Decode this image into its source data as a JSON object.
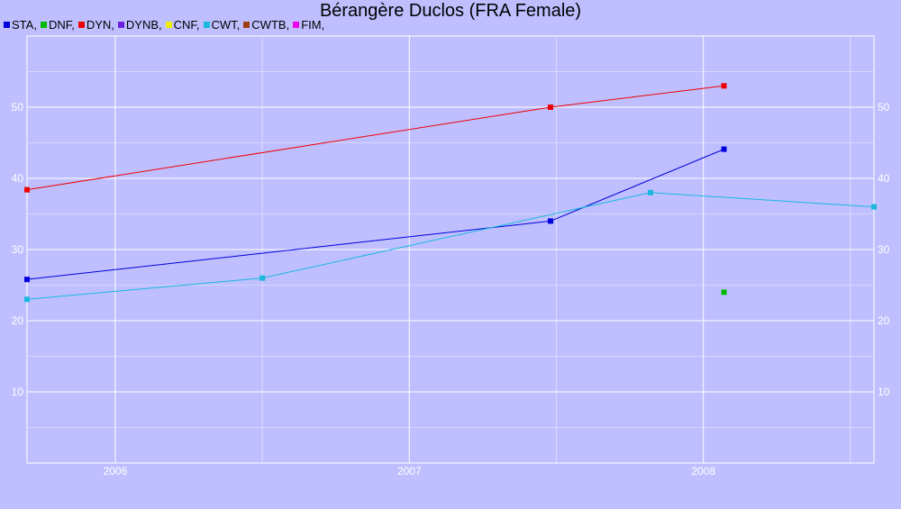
{
  "colors": {
    "background": "#bfbfff",
    "grid": "#ffffff",
    "tick_text": "#ffffff"
  },
  "chart_data": {
    "type": "line",
    "title": "Bérangère Duclos (FRA Female)",
    "xlabel": "",
    "ylabel": "",
    "xlim": [
      2005.7,
      2008.58
    ],
    "ylim": [
      0,
      60
    ],
    "x_ticks": [
      2006,
      2007,
      2008
    ],
    "x_tick_labels": [
      "2006",
      "2007",
      "2008"
    ],
    "y_ticks": [
      10,
      20,
      30,
      40,
      50
    ],
    "y_tick_labels": [
      "10",
      "20",
      "30",
      "40",
      "50"
    ],
    "grid": true,
    "legend_position": "top-left",
    "legend": [
      {
        "label": "STA,",
        "color": "#0000dd"
      },
      {
        "label": "DNF,",
        "color": "#00bb00"
      },
      {
        "label": "DYN,",
        "color": "#ee0000"
      },
      {
        "label": "DYNB,",
        "color": "#6a1fe0"
      },
      {
        "label": "CNF,",
        "color": "#eeee00"
      },
      {
        "label": "CWT,",
        "color": "#1ab8dd"
      },
      {
        "label": "CWTB,",
        "color": "#a04010"
      },
      {
        "label": "FIM,",
        "color": "#ee00ee"
      }
    ],
    "series": [
      {
        "name": "STA",
        "color": "#0000dd",
        "x": [
          2005.7,
          2007.48,
          2008.07
        ],
        "y": [
          25.8,
          34,
          44.1
        ]
      },
      {
        "name": "DNF",
        "color": "#00bb00",
        "x": [
          2008.07
        ],
        "y": [
          24
        ]
      },
      {
        "name": "DYN",
        "color": "#ee0000",
        "x": [
          2005.7,
          2007.48,
          2008.07
        ],
        "y": [
          38.4,
          50,
          53
        ]
      },
      {
        "name": "CWT",
        "color": "#1ab8dd",
        "x": [
          2005.7,
          2006.5,
          2007.82,
          2008.58
        ],
        "y": [
          23,
          26,
          38,
          36
        ]
      }
    ]
  }
}
